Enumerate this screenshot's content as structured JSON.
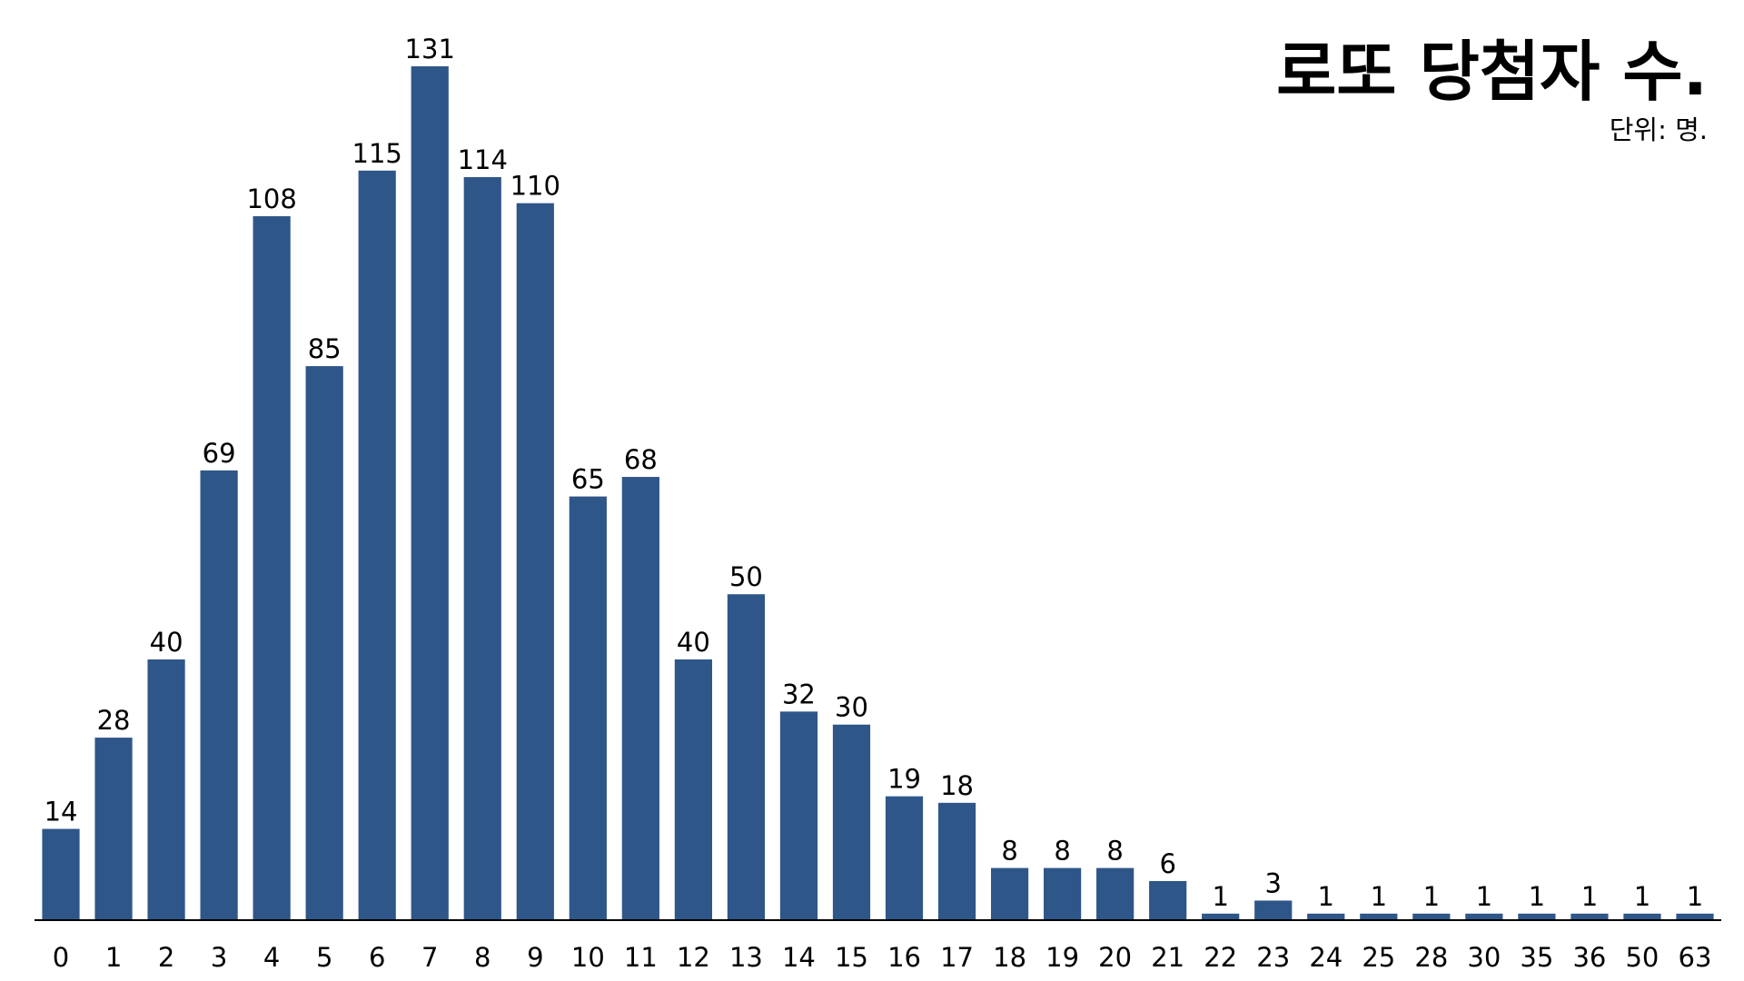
{
  "chart_data": {
    "type": "bar",
    "title": "로또 당첨자 수.",
    "subtitle": "단위: 명.",
    "categories": [
      "0",
      "1",
      "2",
      "3",
      "4",
      "5",
      "6",
      "7",
      "8",
      "9",
      "10",
      "11",
      "12",
      "13",
      "14",
      "15",
      "16",
      "17",
      "18",
      "19",
      "20",
      "21",
      "22",
      "23",
      "24",
      "25",
      "28",
      "30",
      "35",
      "36",
      "50",
      "63"
    ],
    "values": [
      14,
      28,
      40,
      69,
      108,
      85,
      115,
      131,
      114,
      110,
      65,
      68,
      40,
      50,
      32,
      30,
      19,
      18,
      8,
      8,
      8,
      6,
      1,
      3,
      1,
      1,
      1,
      1,
      1,
      1,
      1,
      1
    ],
    "xlabel": "",
    "ylabel": "",
    "ylim": [
      0,
      131
    ],
    "grid": false,
    "legend": false,
    "bar_color": "#2F5689",
    "axis_color": "#000000"
  }
}
